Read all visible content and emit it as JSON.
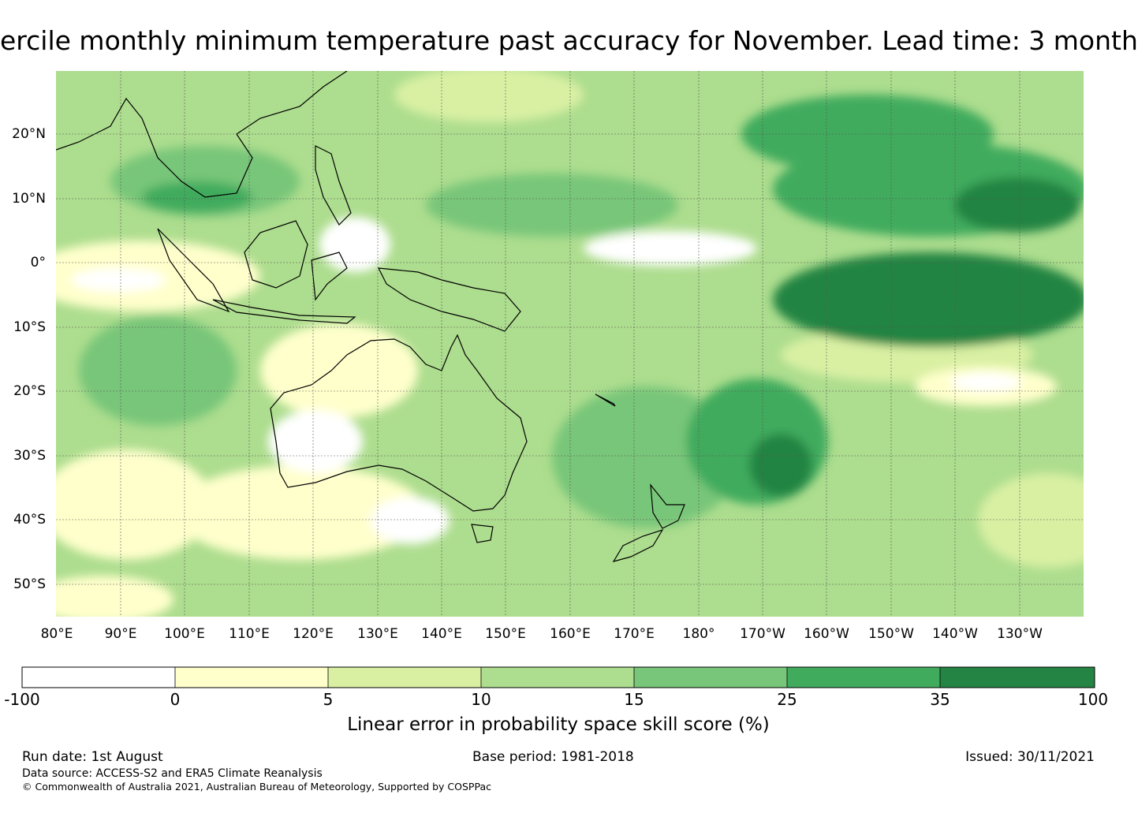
{
  "title": "ercile monthly minimum temperature past accuracy for November. Lead time: 3 month",
  "map": {
    "lat_labels": [
      "20°N",
      "10°N",
      "0°",
      "10°S",
      "20°S",
      "30°S",
      "40°S",
      "50°S"
    ],
    "lon_labels": [
      "80°E",
      "90°E",
      "100°E",
      "110°E",
      "120°E",
      "130°E",
      "140°E",
      "150°E",
      "160°E",
      "170°E",
      "180°",
      "170°W",
      "160°W",
      "150°W",
      "140°W",
      "130°W"
    ],
    "extent": {
      "lon_min": 80,
      "lon_max": 240,
      "lat_min": -55,
      "lat_max": 30
    },
    "regions": {
      "australia": "Australia",
      "new_zealand": "New Zealand",
      "maritime_continent": "Indonesia / Maritime Continent"
    }
  },
  "legend": {
    "ticks": [
      "-100",
      "0",
      "5",
      "10",
      "15",
      "25",
      "35",
      "100"
    ],
    "bins": [
      {
        "range": "-100 to 0",
        "color": "#ffffff"
      },
      {
        "range": "0 to 5",
        "color": "#ffffcc"
      },
      {
        "range": "5 to 10",
        "color": "#d9f0a3"
      },
      {
        "range": "10 to 15",
        "color": "#addd8e"
      },
      {
        "range": "15 to 25",
        "color": "#78c679"
      },
      {
        "range": "25 to 35",
        "color": "#41ab5d"
      },
      {
        "range": "35 to 100",
        "color": "#238443"
      }
    ],
    "label": "Linear error in probability space skill score (%)"
  },
  "footer": {
    "run_date": "Run date: 1st August",
    "base_period": "Base period: 1981-2018",
    "issued": "Issued: 30/11/2021",
    "data_source": "Data source: ACCESS-S2 and ERA5 Climate Reanalysis",
    "copyright": "© Commonwealth of Australia 2021, Australian Bureau of Meteorology, Supported by COSPPac"
  }
}
